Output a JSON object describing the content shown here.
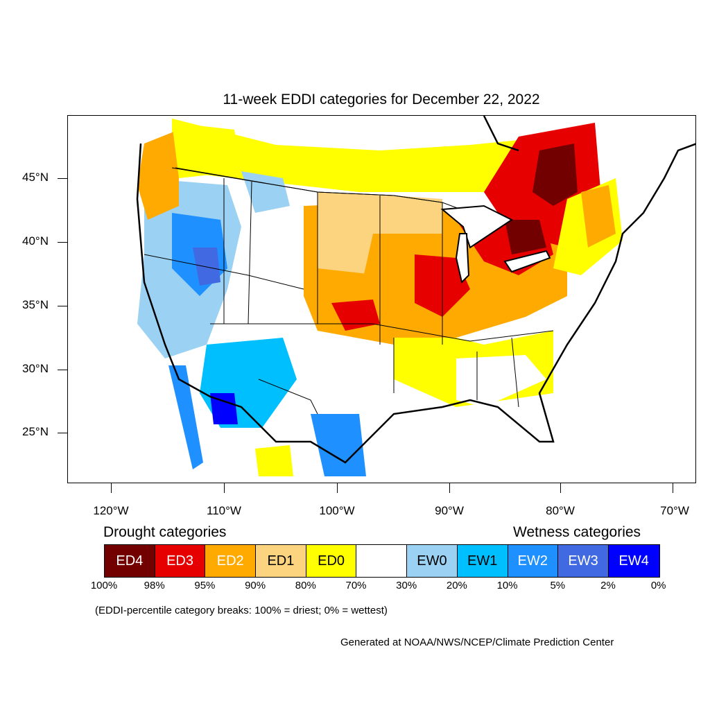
{
  "title": "11-week EDDI categories for December 22, 2022",
  "axes": {
    "lat_labels": [
      "45°N",
      "40°N",
      "35°N",
      "30°N",
      "25°N"
    ],
    "lon_labels": [
      "120°W",
      "110°W",
      "100°W",
      "90°W",
      "80°W",
      "70°W"
    ]
  },
  "legend": {
    "drought_heading": "Drought categories",
    "wetness_heading": "Wetness categories",
    "categories": [
      {
        "label": "ED4",
        "color": "#730000",
        "text_color": "#ffffff"
      },
      {
        "label": "ED3",
        "color": "#e60000",
        "text_color": "#ffffff"
      },
      {
        "label": "ED2",
        "color": "#ffaa00",
        "text_color": "#ffffff"
      },
      {
        "label": "ED1",
        "color": "#fcd37f",
        "text_color": "#000000"
      },
      {
        "label": "ED0",
        "color": "#ffff00",
        "text_color": "#000000"
      },
      {
        "label": "",
        "color": "#ffffff",
        "text_color": "#000000"
      },
      {
        "label": "EW0",
        "color": "#9bd1f2",
        "text_color": "#000000"
      },
      {
        "label": "EW1",
        "color": "#00bfff",
        "text_color": "#000000"
      },
      {
        "label": "EW2",
        "color": "#1e90ff",
        "text_color": "#ffffff"
      },
      {
        "label": "EW3",
        "color": "#4169e1",
        "text_color": "#ffffff"
      },
      {
        "label": "EW4",
        "color": "#0000ff",
        "text_color": "#ffffff"
      }
    ],
    "breaks": [
      "100%",
      "98%",
      "95%",
      "90%",
      "80%",
      "70%",
      "30%",
      "20%",
      "10%",
      "5%",
      "2%",
      "0%"
    ]
  },
  "note": "(EDDI-percentile category breaks: 100% = driest; 0% = wettest)",
  "credit": "Generated at NOAA/NWS/NCEP/Climate Prediction Center"
}
